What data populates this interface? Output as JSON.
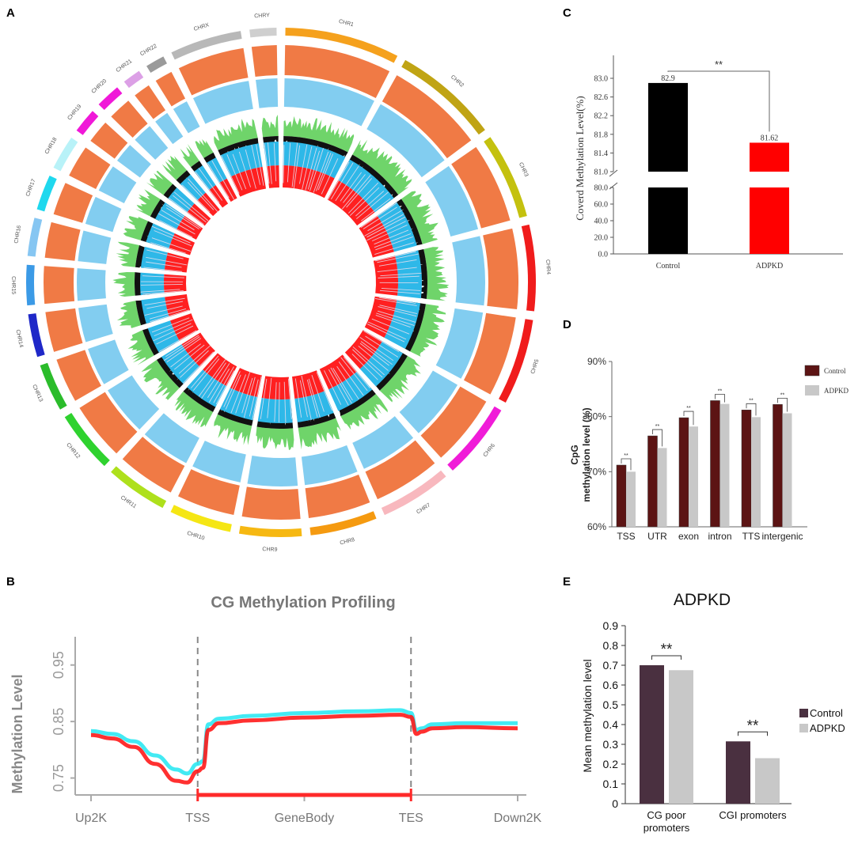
{
  "panel_labels": {
    "a": "A",
    "b": "B",
    "c": "C",
    "d": "D",
    "e": "E"
  },
  "colors": {
    "orange": "#f07a45",
    "skyblue": "#82cdf0",
    "green": "#6fd46a",
    "black": "#111111",
    "cyan": "#2eb8e8",
    "red": "#ff2020",
    "control_dark": "#5c1414",
    "adpkd_gray": "#c8c8c8",
    "e_control": "#4a3040",
    "e_adpkd": "#c8c8c8"
  },
  "chart_data": [
    {
      "panel": "A",
      "type": "circos",
      "chromosomes": [
        {
          "name": "CHR1",
          "color": "#f5a11d",
          "span": 12
        },
        {
          "name": "CHR2",
          "color": "#c0a414",
          "span": 11
        },
        {
          "name": "CHR3",
          "color": "#c4c10f",
          "span": 9
        },
        {
          "name": "CHR4",
          "color": "#f01c1c",
          "span": 9
        },
        {
          "name": "CHR5",
          "color": "#f01c1c",
          "span": 9
        },
        {
          "name": "CHR6",
          "color": "#f01cd8",
          "span": 8
        },
        {
          "name": "CHR7",
          "color": "#f8b8be",
          "span": 7.5
        },
        {
          "name": "CHR8",
          "color": "#f59a10",
          "span": 7
        },
        {
          "name": "CHR9",
          "color": "#f6b812",
          "span": 6.5
        },
        {
          "name": "CHR10",
          "color": "#f5e614",
          "span": 6.5
        },
        {
          "name": "CHR11",
          "color": "#aee01c",
          "span": 6.5
        },
        {
          "name": "CHR12",
          "color": "#2fd22f",
          "span": 6.5
        },
        {
          "name": "CHR13",
          "color": "#2bbc2b",
          "span": 5
        },
        {
          "name": "CHR14",
          "color": "#1f28c8",
          "span": 4.5
        },
        {
          "name": "CHR15",
          "color": "#3b9ae6",
          "span": 4.2
        },
        {
          "name": "CHR16",
          "color": "#86c6f2",
          "span": 4
        },
        {
          "name": "CHR17",
          "color": "#1fd8ee",
          "span": 3.7
        },
        {
          "name": "CHR18",
          "color": "#b8f2f8",
          "span": 3.6
        },
        {
          "name": "CHR19",
          "color": "#f018d8",
          "span": 2.6
        },
        {
          "name": "CHR20",
          "color": "#f018d8",
          "span": 2.6
        },
        {
          "name": "CHR21",
          "color": "#dca0e6",
          "span": 1.9
        },
        {
          "name": "CHR22",
          "color": "#9a9a9a",
          "span": 2
        },
        {
          "name": "CHRX",
          "color": "#b8b8b8",
          "span": 7.5
        },
        {
          "name": "CHRY",
          "color": "#cfcfcf",
          "span": 2.8
        }
      ]
    },
    {
      "panel": "B",
      "type": "line",
      "title": "CG Methylation Profiling",
      "ylabel": "Methylation Level",
      "yticks": [
        0.75,
        0.85,
        0.95
      ],
      "ylim": [
        0.72,
        1.0
      ],
      "xticks": [
        "Up2K",
        "TSS",
        "GeneBody",
        "TES",
        "Down2K"
      ],
      "series": [
        {
          "name": "cyan",
          "color": "#2ee8f2",
          "x": [
            0,
            0.2,
            0.4,
            0.6,
            0.8,
            0.9,
            1.0,
            1.05,
            1.1,
            1.2,
            1.5,
            2.0,
            2.5,
            2.9,
            3.0,
            3.05,
            3.1,
            3.2,
            3.5,
            4.0
          ],
          "y": [
            0.833,
            0.828,
            0.815,
            0.79,
            0.765,
            0.758,
            0.775,
            0.78,
            0.845,
            0.855,
            0.86,
            0.865,
            0.868,
            0.87,
            0.865,
            0.835,
            0.838,
            0.845,
            0.847,
            0.847
          ]
        },
        {
          "name": "red",
          "color": "#ff1a1a",
          "x": [
            0,
            0.2,
            0.4,
            0.6,
            0.8,
            0.9,
            1.0,
            1.05,
            1.1,
            1.2,
            1.5,
            2.0,
            2.5,
            2.9,
            3.0,
            3.05,
            3.1,
            3.2,
            3.5,
            4.0
          ],
          "y": [
            0.826,
            0.82,
            0.805,
            0.775,
            0.745,
            0.742,
            0.762,
            0.768,
            0.835,
            0.847,
            0.852,
            0.857,
            0.86,
            0.862,
            0.858,
            0.828,
            0.832,
            0.838,
            0.84,
            0.838
          ]
        }
      ]
    },
    {
      "panel": "C",
      "type": "bar",
      "ylabel": "Coverd Methylation Level(%)",
      "categories": [
        "Control",
        "ADPKD"
      ],
      "values": [
        82.9,
        81.62
      ],
      "value_labels": [
        "82.9",
        "81.62"
      ],
      "colors": [
        "#000000",
        "#ff0000"
      ],
      "axis_break": [
        80.0,
        81.0
      ],
      "lower_ticks": [
        "0.0",
        "20.0",
        "40.0",
        "60.0",
        "80.0"
      ],
      "upper_ticks": [
        "81.0",
        "81.4",
        "81.8",
        "82.2",
        "82.6",
        "83.0"
      ],
      "significance": "**"
    },
    {
      "panel": "D",
      "type": "bar",
      "ylabel_line1": "CpG",
      "ylabel_line2": "methylation level (%)",
      "ylim": [
        60,
        90
      ],
      "yticks": [
        "60%",
        "70%",
        "80%",
        "90%"
      ],
      "categories": [
        "TSS",
        "UTR",
        "exon",
        "intron",
        "TTS",
        "intergenic"
      ],
      "series": [
        {
          "name": "Control",
          "values": [
            71.2,
            76.5,
            79.8,
            82.9,
            81.2,
            82.2
          ]
        },
        {
          "name": "ADPKD",
          "values": [
            70.0,
            74.3,
            78.2,
            82.3,
            79.9,
            80.6
          ]
        }
      ],
      "significance": "**"
    },
    {
      "panel": "E",
      "type": "bar",
      "title": "ADPKD",
      "ylabel": "Mean methylation level",
      "ylim": [
        0,
        0.9
      ],
      "yticks": [
        "0",
        "0.1",
        "0.2",
        "0.3",
        "0.4",
        "0.5",
        "0.6",
        "0.7",
        "0.8",
        "0.9"
      ],
      "categories": [
        "CG poor promoters",
        "CGI promoters"
      ],
      "category_lines": [
        [
          "CG poor",
          "promoters"
        ],
        [
          "CGI promoters"
        ]
      ],
      "series": [
        {
          "name": "Control",
          "values": [
            0.7,
            0.315
          ]
        },
        {
          "name": "ADPKD",
          "values": [
            0.675,
            0.23
          ]
        }
      ],
      "significance": "**"
    }
  ]
}
